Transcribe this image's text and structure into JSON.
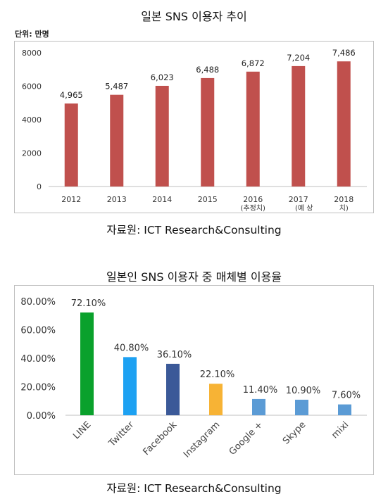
{
  "chart1": {
    "title": "일본 SNS 이용자 추이",
    "unit_label": "단위: 만명",
    "source": "자료원: ICT Research&Consulting"
  },
  "chart2": {
    "title": "일본인 SNS 이용자 중  매체별 이용율",
    "source": "자료원: ICT Research&Consulting"
  },
  "colors": {
    "bar1": "#c0504d",
    "line": "#0aa12c",
    "twitter": "#1da1f2",
    "facebook": "#3b5998",
    "instagram": "#f7b335",
    "other": "#5b9bd5"
  },
  "chart_data": [
    {
      "type": "bar",
      "title": "일본 SNS 이용자 추이",
      "categories": [
        "2012",
        "2013",
        "2014",
        "2015",
        "2016",
        "2017",
        "2018"
      ],
      "category_notes": [
        "",
        "",
        "",
        "",
        "(추정치)",
        "(예      상",
        "치)"
      ],
      "values": [
        4965,
        5487,
        6023,
        6488,
        6872,
        7204,
        7486
      ],
      "value_labels": [
        "4,965",
        "5,487",
        "6,023",
        "6,488",
        "6,872",
        "7,204",
        "7,486"
      ],
      "ylim": [
        0,
        8000
      ],
      "yticks": [
        "0",
        "2000",
        "4000",
        "6000",
        "8000"
      ],
      "ytick_values": [
        0,
        2000,
        4000,
        6000,
        8000
      ],
      "xlabel": "",
      "ylabel": "",
      "grid": false
    },
    {
      "type": "bar",
      "title": "일본인 SNS 이용자 중  매체별 이용율",
      "categories": [
        "LINE",
        "Twitter",
        "Facebook",
        "Instagram",
        "Google +",
        "Skype",
        "mixi"
      ],
      "values": [
        72.1,
        40.8,
        36.1,
        22.1,
        11.4,
        10.9,
        7.6
      ],
      "value_labels": [
        "72.10%",
        "40.80%",
        "36.10%",
        "22.10%",
        "11.40%",
        "10.90%",
        "7.60%"
      ],
      "ylim": [
        0,
        80
      ],
      "yticks": [
        "0.00%",
        "20.00%",
        "40.00%",
        "60.00%",
        "80.00%"
      ],
      "ytick_values": [
        0,
        20,
        40,
        60,
        80
      ],
      "xlabel": "",
      "ylabel": "",
      "grid": false
    }
  ]
}
